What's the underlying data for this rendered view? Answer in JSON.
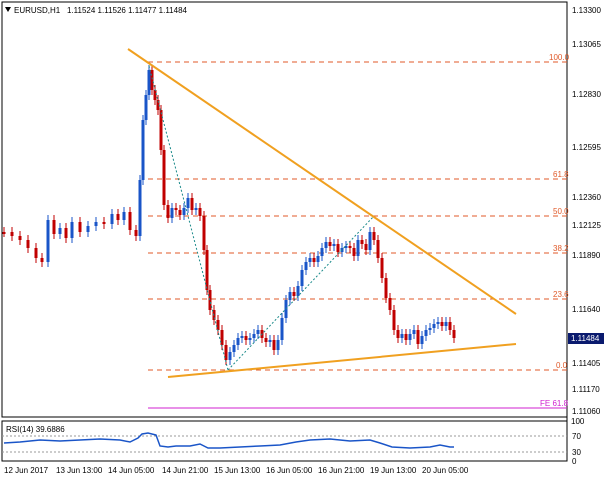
{
  "header": {
    "menu_icon": "triangle-down-icon",
    "symbol": "EURUSD,H1",
    "ohlc": "1.11524 1.11526 1.11477 1.11484"
  },
  "price_axis": {
    "ticks": [
      "1.13300",
      "1.13065",
      "1.12830",
      "1.12595",
      "1.12360",
      "1.12125",
      "1.11890",
      "1.11640",
      "1.11405",
      "1.11170",
      "1.11060"
    ],
    "last_price": "1.11484",
    "last_price_color": "#0a1a6e"
  },
  "fibonacci": {
    "color": "#e05a2a",
    "levels": [
      {
        "label": "100.0",
        "value": 1.1295
      },
      {
        "label": "61.8",
        "value": 1.1233
      },
      {
        "label": "50.0",
        "value": 1.1214
      },
      {
        "label": "38.2",
        "value": 1.1195
      },
      {
        "label": "23.6",
        "value": 1.1171
      },
      {
        "label": "0.0",
        "value": 1.1133
      }
    ],
    "fe_label": "FE 61.8",
    "fe_value": 1.1109,
    "fe_color": "#d020d0"
  },
  "trendlines": {
    "color": "#f0a020"
  },
  "candles": {
    "color": "#c00000",
    "up_color": "#1a55c8"
  },
  "rsi": {
    "label": "RSI(14) 39.6886",
    "levels": [
      "70",
      "30"
    ],
    "line_color": "#1a55c8"
  },
  "time_axis": {
    "labels": [
      "12 Jun 2017",
      "13 Jun 13:00",
      "14 Jun 05:00",
      "14 Jun 21:00",
      "15 Jun 13:00",
      "16 Jun 05:00",
      "16 Jun 21:00",
      "19 Jun 13:00",
      "20 Jun 05:00"
    ]
  }
}
